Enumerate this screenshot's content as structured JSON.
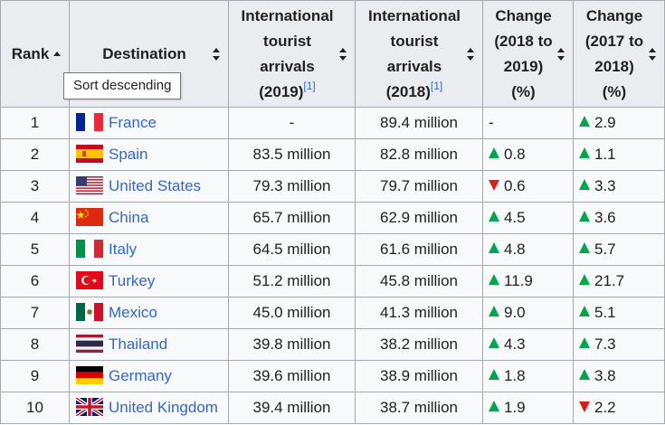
{
  "table": {
    "headers": [
      {
        "label": "Rank",
        "sort": "ascending"
      },
      {
        "label": "Destination",
        "sort": "none"
      },
      {
        "label": "International tourist arrivals (2019)",
        "ref": "[1]",
        "sort": "none"
      },
      {
        "label": "International tourist arrivals (2018)",
        "ref": "[1]",
        "sort": "none"
      },
      {
        "label": "Change (2018 to 2019) (%)",
        "sort": "none"
      },
      {
        "label": "Change (2017 to 2018) (%)",
        "sort": "none"
      }
    ],
    "header_lines": {
      "arrivals2019": [
        "International",
        "tourist",
        "arrivals",
        "(2019)"
      ],
      "arrivals2018": [
        "International",
        "tourist",
        "arrivals",
        "(2018)"
      ],
      "change1": [
        "Change",
        "(2018 to",
        "2019)",
        "(%)"
      ],
      "change2": [
        "Change",
        "(2017 to",
        "2018)",
        "(%)"
      ]
    },
    "rows": [
      {
        "rank": "1",
        "destination": "France",
        "flag": "france-flag-icon",
        "arrivals_2019": "-",
        "arrivals_2018": "89.4 million",
        "change_2019": "-",
        "change_2019_dir": "none",
        "change_2018": "2.9",
        "change_2018_dir": "up"
      },
      {
        "rank": "2",
        "destination": "Spain",
        "flag": "spain-flag-icon",
        "arrivals_2019": "83.5 million",
        "arrivals_2018": "82.8 million",
        "change_2019": "0.8",
        "change_2019_dir": "up",
        "change_2018": "1.1",
        "change_2018_dir": "up"
      },
      {
        "rank": "3",
        "destination": "United States",
        "flag": "usa-flag-icon",
        "arrivals_2019": "79.3 million",
        "arrivals_2018": "79.7 million",
        "change_2019": "0.6",
        "change_2019_dir": "down",
        "change_2018": "3.3",
        "change_2018_dir": "up"
      },
      {
        "rank": "4",
        "destination": "China",
        "flag": "china-flag-icon",
        "arrivals_2019": "65.7 million",
        "arrivals_2018": "62.9 million",
        "change_2019": "4.5",
        "change_2019_dir": "up",
        "change_2018": "3.6",
        "change_2018_dir": "up"
      },
      {
        "rank": "5",
        "destination": "Italy",
        "flag": "italy-flag-icon",
        "arrivals_2019": "64.5 million",
        "arrivals_2018": "61.6 million",
        "change_2019": "4.8",
        "change_2019_dir": "up",
        "change_2018": "5.7",
        "change_2018_dir": "up"
      },
      {
        "rank": "6",
        "destination": "Turkey",
        "flag": "turkey-flag-icon",
        "arrivals_2019": "51.2 million",
        "arrivals_2018": "45.8 million",
        "change_2019": "11.9",
        "change_2019_dir": "up",
        "change_2018": "21.7",
        "change_2018_dir": "up"
      },
      {
        "rank": "7",
        "destination": "Mexico",
        "flag": "mexico-flag-icon",
        "arrivals_2019": "45.0 million",
        "arrivals_2018": "41.3 million",
        "change_2019": "9.0",
        "change_2019_dir": "up",
        "change_2018": "5.1",
        "change_2018_dir": "up"
      },
      {
        "rank": "8",
        "destination": "Thailand",
        "flag": "thailand-flag-icon",
        "arrivals_2019": "39.8 million",
        "arrivals_2018": "38.2 million",
        "change_2019": "4.3",
        "change_2019_dir": "up",
        "change_2018": "7.3",
        "change_2018_dir": "up"
      },
      {
        "rank": "9",
        "destination": "Germany",
        "flag": "germany-flag-icon",
        "arrivals_2019": "39.6 million",
        "arrivals_2018": "38.9 million",
        "change_2019": "1.8",
        "change_2019_dir": "up",
        "change_2018": "3.8",
        "change_2018_dir": "up"
      },
      {
        "rank": "10",
        "destination": "United Kingdom",
        "flag": "uk-flag-icon",
        "arrivals_2019": "39.4 million",
        "arrivals_2018": "38.7 million",
        "change_2019": "1.9",
        "change_2019_dir": "up",
        "change_2018": "2.2",
        "change_2018_dir": "down"
      }
    ]
  },
  "tooltip": {
    "text": "Sort descending"
  },
  "colors": {
    "link": "#3366cc",
    "up": "#00a64b",
    "down": "#d91e18",
    "header_bg": "#eaecf0",
    "border": "#a2a9b1"
  }
}
